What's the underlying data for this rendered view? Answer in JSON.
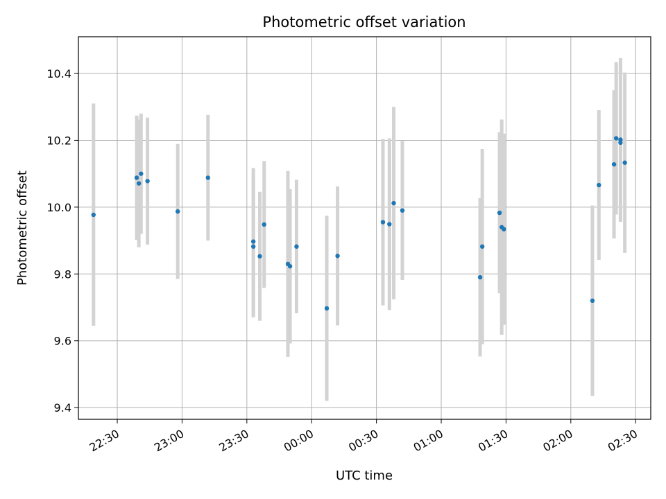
{
  "chart_data": {
    "type": "scatter",
    "title": "Photometric offset variation",
    "xlabel": "UTC time",
    "ylabel": "Photometric offset",
    "grid": true,
    "error_bar_color": "#d3d3d3",
    "point_color": "#1f77b4",
    "x_unit": "UTC time (hh:mm)",
    "xlim": [
      "22:12",
      "02:37"
    ],
    "ylim": [
      9.365,
      10.51
    ],
    "x_ticks": [
      "22:30",
      "23:00",
      "23:30",
      "00:00",
      "00:30",
      "01:00",
      "01:30",
      "02:00",
      "02:30"
    ],
    "y_ticks": [
      9.4,
      9.6,
      9.8,
      10.0,
      10.2,
      10.4
    ],
    "y_tick_labels": [
      "9.4",
      "9.6",
      "9.8",
      "10.0",
      "10.2",
      "10.4"
    ],
    "points": [
      {
        "x": "22:19",
        "y": 9.977,
        "lo": 9.645,
        "hi": 10.31
      },
      {
        "x": "22:39",
        "y": 10.088,
        "lo": 9.902,
        "hi": 10.274
      },
      {
        "x": "22:40",
        "y": 10.071,
        "lo": 9.88,
        "hi": 10.262
      },
      {
        "x": "22:41",
        "y": 10.1,
        "lo": 9.92,
        "hi": 10.28
      },
      {
        "x": "22:44",
        "y": 10.078,
        "lo": 9.888,
        "hi": 10.268
      },
      {
        "x": "22:58",
        "y": 9.987,
        "lo": 9.785,
        "hi": 10.189
      },
      {
        "x": "23:12",
        "y": 10.088,
        "lo": 9.9,
        "hi": 10.276
      },
      {
        "x": "23:33",
        "y": 9.882,
        "lo": 9.67,
        "hi": 10.094
      },
      {
        "x": "23:33",
        "y": 9.897,
        "lo": 9.677,
        "hi": 10.117
      },
      {
        "x": "23:36",
        "y": 9.853,
        "lo": 9.66,
        "hi": 10.046
      },
      {
        "x": "23:38",
        "y": 9.948,
        "lo": 9.758,
        "hi": 10.138
      },
      {
        "x": "23:49",
        "y": 9.83,
        "lo": 9.552,
        "hi": 10.108
      },
      {
        "x": "23:50",
        "y": 9.823,
        "lo": 9.592,
        "hi": 10.054
      },
      {
        "x": "23:53",
        "y": 9.882,
        "lo": 9.682,
        "hi": 10.082
      },
      {
        "x": "00:07",
        "y": 9.697,
        "lo": 9.42,
        "hi": 9.974
      },
      {
        "x": "00:12",
        "y": 9.854,
        "lo": 9.646,
        "hi": 10.062
      },
      {
        "x": "00:33",
        "y": 9.955,
        "lo": 9.706,
        "hi": 10.204
      },
      {
        "x": "00:36",
        "y": 9.949,
        "lo": 9.692,
        "hi": 10.206
      },
      {
        "x": "00:38",
        "y": 10.012,
        "lo": 9.724,
        "hi": 10.3
      },
      {
        "x": "00:42",
        "y": 9.99,
        "lo": 9.782,
        "hi": 10.198
      },
      {
        "x": "01:18",
        "y": 9.79,
        "lo": 9.553,
        "hi": 10.027
      },
      {
        "x": "01:19",
        "y": 9.882,
        "lo": 9.59,
        "hi": 10.174
      },
      {
        "x": "01:27",
        "y": 9.983,
        "lo": 9.742,
        "hi": 10.224
      },
      {
        "x": "01:28",
        "y": 9.94,
        "lo": 9.618,
        "hi": 10.262
      },
      {
        "x": "01:29",
        "y": 9.934,
        "lo": 9.648,
        "hi": 10.22
      },
      {
        "x": "02:10",
        "y": 9.72,
        "lo": 9.435,
        "hi": 10.005
      },
      {
        "x": "02:13",
        "y": 10.066,
        "lo": 9.842,
        "hi": 10.29
      },
      {
        "x": "02:20",
        "y": 10.128,
        "lo": 9.906,
        "hi": 10.35
      },
      {
        "x": "02:21",
        "y": 10.206,
        "lo": 9.978,
        "hi": 10.434
      },
      {
        "x": "02:23",
        "y": 10.202,
        "lo": 9.958,
        "hi": 10.446
      },
      {
        "x": "02:23",
        "y": 10.193,
        "lo": 9.956,
        "hi": 10.43
      },
      {
        "x": "02:25",
        "y": 10.133,
        "lo": 9.863,
        "hi": 10.403
      }
    ]
  }
}
